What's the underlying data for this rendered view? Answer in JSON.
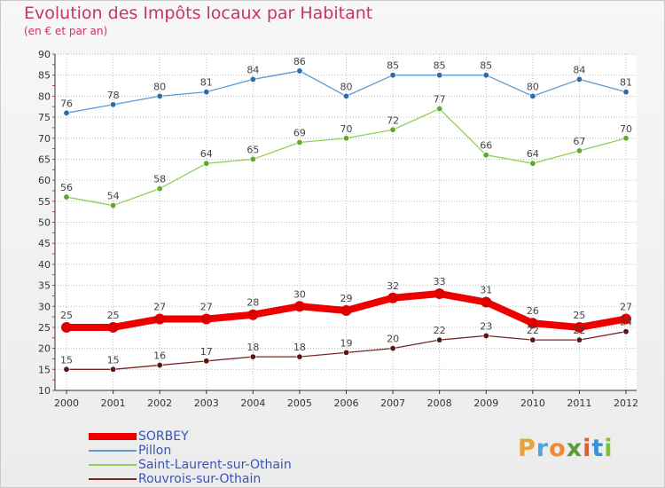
{
  "colors": {
    "title": "#c8336b",
    "axis": "#333333",
    "grid": "#bbbbbb",
    "tick_red": "#d9364a",
    "legend_text": "#3b55b5"
  },
  "chart_data": {
    "type": "line",
    "title": "Evolution des Impôts locaux par Habitant",
    "subtitle": "(en € et par an)",
    "xlabel": "",
    "ylabel": "",
    "ylim": [
      10,
      90
    ],
    "yticks": [
      10,
      15,
      20,
      25,
      30,
      35,
      40,
      45,
      50,
      55,
      60,
      65,
      70,
      75,
      80,
      85,
      90
    ],
    "x": [
      2000,
      2001,
      2002,
      2003,
      2004,
      2005,
      2006,
      2007,
      2008,
      2009,
      2010,
      2011,
      2012
    ],
    "series": [
      {
        "name": "Pillon",
        "color": "#5b9bd5",
        "marker": "#2d6ba8",
        "values": [
          76,
          78,
          80,
          81,
          84,
          86,
          80,
          85,
          85,
          85,
          80,
          84,
          81
        ]
      },
      {
        "name": "Saint-Laurent-sur-Othain",
        "color": "#8fd05a",
        "marker": "#5fa82d",
        "values": [
          56,
          54,
          58,
          64,
          65,
          69,
          70,
          72,
          77,
          66,
          64,
          67,
          70
        ]
      },
      {
        "name": "SORBEY",
        "color": "#ee0000",
        "marker": "#dd0000",
        "values": [
          25,
          25,
          27,
          27,
          28,
          30,
          29,
          32,
          33,
          31,
          26,
          25,
          27
        ]
      },
      {
        "name": "Rouvrois-sur-Othain",
        "color": "#7a2626",
        "marker": "#5a1515",
        "values": [
          15,
          15,
          16,
          17,
          18,
          18,
          19,
          20,
          22,
          23,
          22,
          22,
          24
        ]
      }
    ],
    "legend": [
      "SORBEY",
      "Pillon",
      "Saint-Laurent-sur-Othain",
      "Rouvrois-sur-Othain"
    ],
    "grid": true
  },
  "logo": {
    "letters": [
      "P",
      "r",
      "o",
      "x",
      "i",
      "t",
      "i"
    ],
    "colors": [
      "#e8a23a",
      "#4aa7d8",
      "#f08a2e",
      "#5b9b3a",
      "#e65b2a",
      "#3a8fd6",
      "#7cc242"
    ]
  }
}
